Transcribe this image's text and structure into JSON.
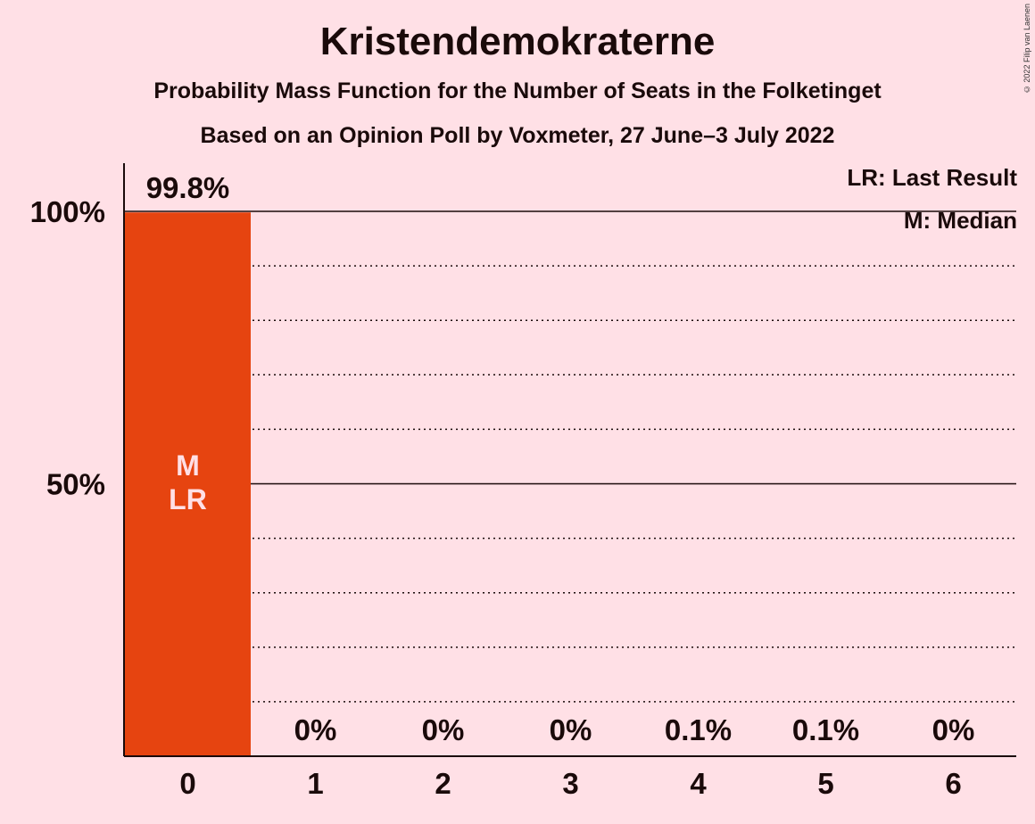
{
  "title": "Kristendemokraterne",
  "subtitle": "Probability Mass Function for the Number of Seats in the Folketinget",
  "subtitle2": "Based on an Opinion Poll by Voxmeter, 27 June–3 July 2022",
  "copyright": "© 2022 Filip van Laenen",
  "legend": {
    "last_result": "LR: Last Result",
    "median": "M: Median"
  },
  "colors": {
    "background": "#FFE0E6",
    "bar": "#E64410",
    "text": "#1A0A0A",
    "bar_label": "#FFE0E6"
  },
  "chart_data": {
    "type": "bar",
    "categories": [
      "0",
      "1",
      "2",
      "3",
      "4",
      "5",
      "6"
    ],
    "values": [
      99.8,
      0,
      0,
      0,
      0.1,
      0.1,
      0
    ],
    "value_labels": [
      "99.8%",
      "0%",
      "0%",
      "0%",
      "0.1%",
      "0.1%",
      "0%"
    ],
    "bar_annotations": [
      [
        "M",
        "LR"
      ],
      [],
      [],
      [],
      [],
      [],
      []
    ],
    "ylim": [
      0,
      100
    ],
    "yticks": [
      50,
      100
    ],
    "ytick_labels": [
      "50%",
      "100%"
    ],
    "grid": true,
    "minor_grid_step": 10
  }
}
